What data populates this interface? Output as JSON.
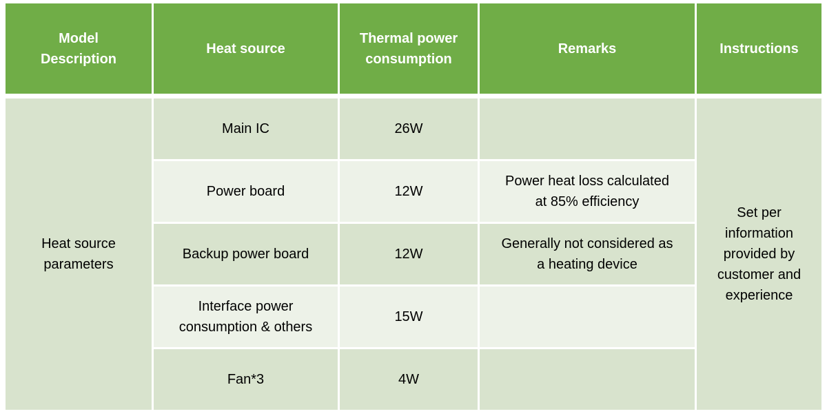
{
  "table": {
    "headers": [
      "Model Description",
      "Heat source",
      "Thermal power consumption",
      "Remarks",
      "Instructions"
    ],
    "model_description": "Heat source parameters",
    "instructions": "Set per information provided by customer and experience",
    "rows": [
      {
        "heat_source": "Main IC",
        "thermal_power": "26W",
        "remark": ""
      },
      {
        "heat_source": "Power board",
        "thermal_power": "12W",
        "remark": "Power heat loss calculated at 85% efficiency"
      },
      {
        "heat_source": "Backup power board",
        "thermal_power": "12W",
        "remark": "Generally not considered as a heating device"
      },
      {
        "heat_source": "Interface power consumption & others",
        "thermal_power": "15W",
        "remark": ""
      },
      {
        "heat_source": "Fan*3",
        "thermal_power": "4W",
        "remark": ""
      }
    ],
    "colors": {
      "header_bg": "#70ad47",
      "row_odd_bg": "#d8e3cd",
      "row_even_bg": "#edf2e8",
      "header_text": "#ffffff",
      "body_text": "#000000",
      "gap_color": "#ffffff"
    }
  }
}
